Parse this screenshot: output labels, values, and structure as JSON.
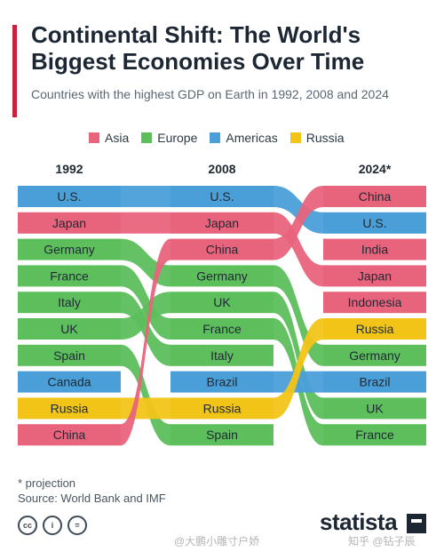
{
  "header": {
    "title": "Continental Shift: The World's Biggest Economies Over Time",
    "subtitle": "Countries with the highest GDP on Earth in 1992, 2008 and 2024"
  },
  "colors": {
    "Asia": "#e8647d",
    "Europe": "#5cbf5c",
    "Americas": "#4a9fd9",
    "Russia": "#f2c418"
  },
  "legend": [
    {
      "label": "Asia",
      "color": "#e8647d"
    },
    {
      "label": "Europe",
      "color": "#5cbf5c"
    },
    {
      "label": "Americas",
      "color": "#4a9fd9"
    },
    {
      "label": "Russia",
      "color": "#f2c418"
    }
  ],
  "chart_data": {
    "type": "bump",
    "years": [
      "1992",
      "2008",
      "2024*"
    ],
    "rankings": {
      "1992": [
        {
          "country": "U.S.",
          "group": "Americas"
        },
        {
          "country": "Japan",
          "group": "Asia"
        },
        {
          "country": "Germany",
          "group": "Europe"
        },
        {
          "country": "France",
          "group": "Europe"
        },
        {
          "country": "Italy",
          "group": "Europe"
        },
        {
          "country": "UK",
          "group": "Europe"
        },
        {
          "country": "Spain",
          "group": "Europe"
        },
        {
          "country": "Canada",
          "group": "Americas"
        },
        {
          "country": "Russia",
          "group": "Russia"
        },
        {
          "country": "China",
          "group": "Asia"
        }
      ],
      "2008": [
        {
          "country": "U.S.",
          "group": "Americas"
        },
        {
          "country": "Japan",
          "group": "Asia"
        },
        {
          "country": "China",
          "group": "Asia"
        },
        {
          "country": "Germany",
          "group": "Europe"
        },
        {
          "country": "UK",
          "group": "Europe"
        },
        {
          "country": "France",
          "group": "Europe"
        },
        {
          "country": "Italy",
          "group": "Europe"
        },
        {
          "country": "Brazil",
          "group": "Americas"
        },
        {
          "country": "Russia",
          "group": "Russia"
        },
        {
          "country": "Spain",
          "group": "Europe"
        }
      ],
      "2024*": [
        {
          "country": "China",
          "group": "Asia"
        },
        {
          "country": "U.S.",
          "group": "Americas"
        },
        {
          "country": "India",
          "group": "Asia"
        },
        {
          "country": "Japan",
          "group": "Asia"
        },
        {
          "country": "Indonesia",
          "group": "Asia"
        },
        {
          "country": "Russia",
          "group": "Russia"
        },
        {
          "country": "Germany",
          "group": "Europe"
        },
        {
          "country": "Brazil",
          "group": "Americas"
        },
        {
          "country": "UK",
          "group": "Europe"
        },
        {
          "country": "France",
          "group": "Europe"
        }
      ]
    }
  },
  "footer": {
    "note": "* projection",
    "source": "Source: World Bank and IMF",
    "brand": "statista",
    "cc_icons": [
      "cc-icon",
      "by-icon",
      "nd-icon"
    ],
    "watermark_left": "@大鹏小雕寸户娇",
    "watermark_right": "知乎 @钻子辰"
  }
}
